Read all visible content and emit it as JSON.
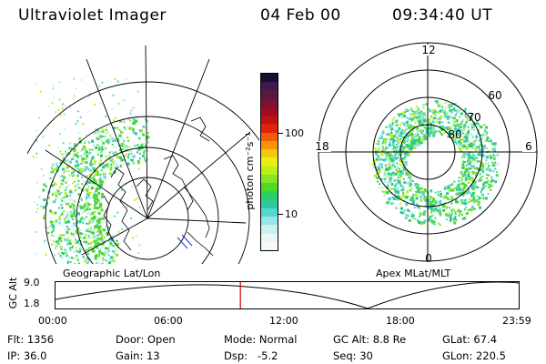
{
  "header": {
    "instrument": "Ultraviolet Imager",
    "date": "04 Feb 00",
    "time": "09:34:40 UT"
  },
  "colorbar": {
    "label": "photon cm⁻²s⁻¹",
    "ticks": [
      "100",
      "10"
    ],
    "colors": [
      "#1a0d2e",
      "#3c1a4d",
      "#5a1740",
      "#7a1230",
      "#9c0d22",
      "#c20f14",
      "#e2230c",
      "#f25a08",
      "#f7950a",
      "#f4c90b",
      "#e9ef10",
      "#bcf017",
      "#86e620",
      "#4fd82e",
      "#2ecf62",
      "#2ec9a1",
      "#56d6d0",
      "#95e6e6",
      "#cfeff0",
      "#eaf7f7",
      "#f5fafa"
    ]
  },
  "left_panel": {
    "label": "Geographic Lat/Lon"
  },
  "right_panel": {
    "label": "Apex MLat/MLT",
    "mlt_labels": [
      "12",
      "18",
      "6",
      "0"
    ],
    "mlat_labels": [
      "60",
      "70",
      "80"
    ]
  },
  "orbit_plot": {
    "ylabel": "GC Alt",
    "y_ticks": [
      "9.0",
      "1.8"
    ],
    "x_ticks": [
      "00:00",
      "06:00",
      "12:00",
      "18:00",
      "23:59"
    ],
    "current_time_hours": 9.58,
    "marker_color": "#cc0000"
  },
  "status": {
    "row1": [
      {
        "key": "Flt:",
        "value": "1356"
      },
      {
        "key": "Door:",
        "value": "Open"
      },
      {
        "key": "Mode:",
        "value": "Normal"
      },
      {
        "key": "GC Alt:",
        "value": "8.8 Re"
      },
      {
        "key": "GLat:",
        "value": "67.4"
      }
    ],
    "row2": [
      {
        "key": "IP:",
        "value": "36.0"
      },
      {
        "key": "Gain:",
        "value": "13"
      },
      {
        "key": "Dsp:",
        "value": "-5.2"
      },
      {
        "key": "Seq:",
        "value": "30"
      },
      {
        "key": "GLon:",
        "value": "220.5"
      }
    ]
  }
}
